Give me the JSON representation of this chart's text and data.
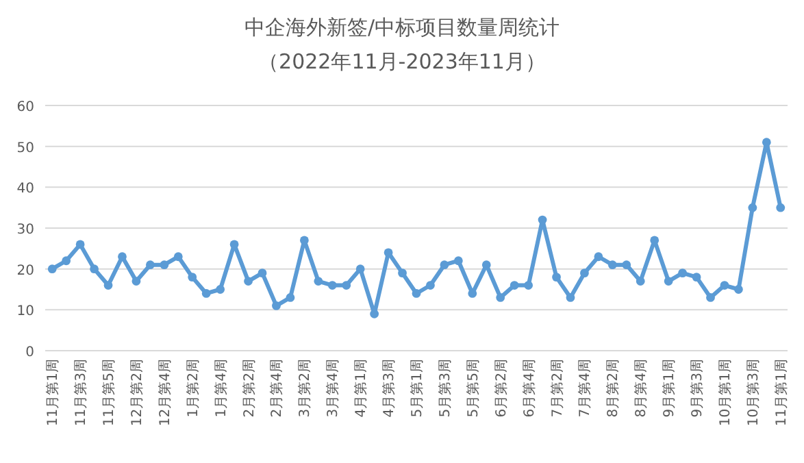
{
  "chart_data": {
    "type": "line",
    "title": "中企海外新签/中标项目数量周统计",
    "subtitle": "（2022年11月-2023年11月）",
    "categories": [
      "11月第1周",
      null,
      "11月第3周",
      null,
      "11月第5周",
      null,
      "12月第2周",
      null,
      "12月第4周",
      null,
      "1月第2周",
      null,
      "1月第4周",
      null,
      "2月第2周",
      null,
      "2月第4周",
      null,
      "3月第2周",
      null,
      "3月第4周",
      null,
      "4月第1周",
      null,
      "4月第3周",
      null,
      "5月第1周",
      null,
      "5月第3周",
      null,
      "5月第5周",
      null,
      "6月第2周",
      null,
      "6月第4周",
      null,
      "7月第2周",
      null,
      "7月第4周",
      null,
      "8月第2周",
      null,
      "8月第4周",
      null,
      "9月第1周",
      null,
      "9月第3周",
      null,
      "10月第1周",
      null,
      "10月第3周",
      null,
      "11月第1周"
    ],
    "series": [
      {
        "color": "#5b9bd5",
        "values": [
          20,
          22,
          26,
          20,
          16,
          23,
          17,
          21,
          21,
          23,
          18,
          14,
          15,
          26,
          17,
          19,
          11,
          13,
          27,
          17,
          16,
          16,
          20,
          9,
          24,
          19,
          14,
          16,
          21,
          22,
          14,
          21,
          13,
          16,
          16,
          32,
          18,
          13,
          19,
          23,
          21,
          21,
          17,
          27,
          17,
          19,
          18,
          13,
          16,
          15,
          35,
          51,
          35
        ]
      }
    ],
    "ylim": [
      0,
      60
    ],
    "yticks": [
      0,
      10,
      20,
      30,
      40,
      50,
      60
    ],
    "grid": "y",
    "marker": "circle",
    "line_style": "solid"
  }
}
